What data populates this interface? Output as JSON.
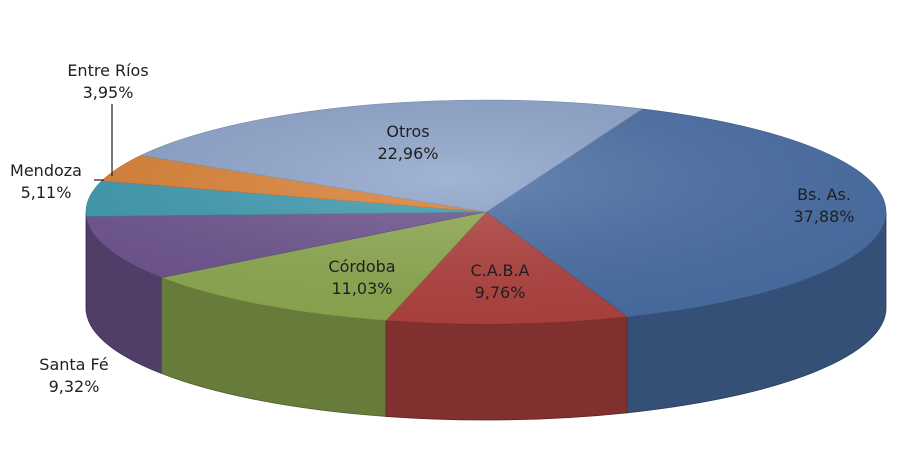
{
  "chart_data": {
    "type": "pie",
    "style": "3d",
    "slices": [
      {
        "label": "Bs. As.",
        "value": 37.88,
        "display": "37,88%",
        "color": "#4a6fa5"
      },
      {
        "label": "C.A.B.A",
        "value": 9.76,
        "display": "9,76%",
        "color": "#b24340"
      },
      {
        "label": "Córdoba",
        "value": 11.03,
        "display": "11,03%",
        "color": "#8fab52"
      },
      {
        "label": "Santa Fé",
        "value": 9.32,
        "display": "9,32%",
        "color": "#6f5590"
      },
      {
        "label": "Mendoza",
        "value": 5.11,
        "display": "5,11%",
        "color": "#3f9bb2"
      },
      {
        "label": "Entre Ríos",
        "value": 3.95,
        "display": "3,95%",
        "color": "#dc8236"
      },
      {
        "label": "Otros",
        "value": 22.96,
        "display": "22,96%",
        "color": "#8da4cb"
      }
    ]
  }
}
